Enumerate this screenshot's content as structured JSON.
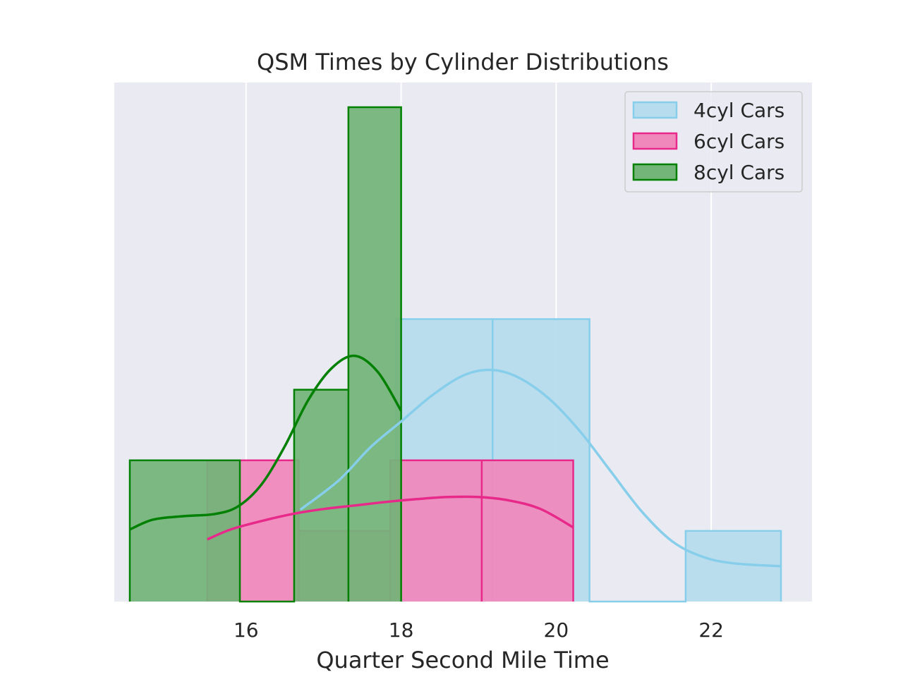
{
  "chart_data": {
    "type": "histogram",
    "title": "QSM Times by Cylinder Distributions",
    "xlabel": "Quarter Second Mile Time",
    "ylabel": "",
    "xlim": [
      14.3,
      23.3
    ],
    "ylim": [
      0,
      7.35
    ],
    "x_ticks": [
      16,
      18,
      20,
      22
    ],
    "y_ticks": [],
    "grid": true,
    "legend_position": "top-right",
    "series": [
      {
        "name": "4cyl Cars",
        "edge_color": "#87ceeb",
        "fill_color": "#b6dcee",
        "bins": [
          {
            "x0": 16.7,
            "x1": 17.93,
            "count": 1
          },
          {
            "x0": 17.93,
            "x1": 19.18,
            "count": 4
          },
          {
            "x0": 19.18,
            "x1": 20.43,
            "count": 4
          },
          {
            "x0": 20.43,
            "x1": 21.67,
            "count": 0
          },
          {
            "x0": 21.67,
            "x1": 22.9,
            "count": 1
          }
        ],
        "kde": [
          [
            16.7,
            1.3
          ],
          [
            17.2,
            1.72
          ],
          [
            17.6,
            2.18
          ],
          [
            18.0,
            2.55
          ],
          [
            18.4,
            2.92
          ],
          [
            18.8,
            3.2
          ],
          [
            19.15,
            3.28
          ],
          [
            19.5,
            3.18
          ],
          [
            19.9,
            2.88
          ],
          [
            20.3,
            2.42
          ],
          [
            20.7,
            1.85
          ],
          [
            21.1,
            1.28
          ],
          [
            21.5,
            0.85
          ],
          [
            21.9,
            0.63
          ],
          [
            22.3,
            0.54
          ],
          [
            22.9,
            0.5
          ]
        ]
      },
      {
        "name": "6cyl Cars",
        "edge_color": "#e7298a",
        "fill_color": "#f088bb",
        "bins": [
          {
            "x0": 15.5,
            "x1": 16.68,
            "count": 2
          },
          {
            "x0": 16.68,
            "x1": 17.86,
            "count": 1
          },
          {
            "x0": 17.86,
            "x1": 19.04,
            "count": 2
          },
          {
            "x0": 19.04,
            "x1": 20.22,
            "count": 2
          }
        ],
        "kde": [
          [
            15.5,
            0.88
          ],
          [
            15.8,
            1.02
          ],
          [
            16.2,
            1.14
          ],
          [
            16.6,
            1.24
          ],
          [
            17.0,
            1.31
          ],
          [
            17.4,
            1.36
          ],
          [
            17.8,
            1.41
          ],
          [
            18.2,
            1.45
          ],
          [
            18.6,
            1.48
          ],
          [
            19.0,
            1.48
          ],
          [
            19.4,
            1.43
          ],
          [
            19.8,
            1.31
          ],
          [
            20.22,
            1.05
          ]
        ]
      },
      {
        "name": "8cyl Cars",
        "edge_color": "#008000",
        "fill_color": "#73b478",
        "bins": [
          {
            "x0": 14.5,
            "x1": 15.92,
            "count": 2
          },
          {
            "x0": 15.92,
            "x1": 16.62,
            "count": 0
          },
          {
            "x0": 16.62,
            "x1": 17.32,
            "count": 3
          },
          {
            "x0": 17.32,
            "x1": 18.0,
            "count": 7
          }
        ],
        "kde": [
          [
            14.5,
            1.02
          ],
          [
            14.8,
            1.16
          ],
          [
            15.2,
            1.21
          ],
          [
            15.6,
            1.24
          ],
          [
            15.9,
            1.35
          ],
          [
            16.2,
            1.66
          ],
          [
            16.5,
            2.2
          ],
          [
            16.8,
            2.85
          ],
          [
            17.1,
            3.3
          ],
          [
            17.4,
            3.48
          ],
          [
            17.7,
            3.25
          ],
          [
            18.0,
            2.7
          ]
        ]
      }
    ]
  }
}
